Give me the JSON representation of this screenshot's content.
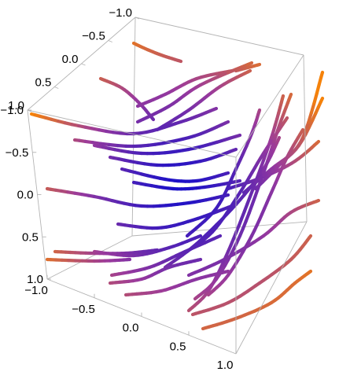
{
  "chart_data": {
    "type": "stream3d",
    "title": "",
    "xlabel": "",
    "ylabel": "",
    "zlabel": "",
    "xlim": [
      -1,
      1
    ],
    "ylim": [
      -1,
      1
    ],
    "zlim": [
      -1,
      1
    ],
    "x_ticks": [
      "−1.0",
      "−0.5",
      "0.0",
      "0.5",
      "1.0"
    ],
    "y_ticks": [
      "−1.0",
      "−0.5",
      "0.0",
      "0.5",
      "1.0"
    ],
    "z_ticks": [
      "−1.0",
      "−0.5",
      "0.0",
      "0.5",
      "1.0"
    ],
    "color_scale": {
      "low": "#1a10c8",
      "mid": "#9a3a9c",
      "high": "#f5820a",
      "meaning": "speed"
    },
    "box": "full",
    "grid": false,
    "streamlines": [
      [
        [
          170,
          55
        ],
        [
          185,
          62
        ],
        [
          205,
          70
        ],
        [
          230,
          78
        ]
      ],
      [
        [
          128,
          100
        ],
        [
          155,
          112
        ],
        [
          178,
          132
        ],
        [
          195,
          152
        ]
      ],
      [
        [
          175,
          135
        ],
        [
          210,
          120
        ],
        [
          250,
          100
        ],
        [
          295,
          90
        ]
      ],
      [
        [
          175,
          155
        ],
        [
          215,
          135
        ],
        [
          255,
          108
        ],
        [
          320,
          80
        ]
      ],
      [
        [
          200,
          165
        ],
        [
          240,
          140
        ],
        [
          280,
          110
        ],
        [
          318,
          90
        ]
      ],
      [
        [
          40,
          145
        ],
        [
          100,
          160
        ],
        [
          170,
          170
        ],
        [
          230,
          155
        ],
        [
          275,
          138
        ]
      ],
      [
        [
          95,
          178
        ],
        [
          170,
          186
        ],
        [
          240,
          175
        ],
        [
          290,
          155
        ]
      ],
      [
        [
          120,
          185
        ],
        [
          180,
          195
        ],
        [
          240,
          190
        ],
        [
          305,
          172
        ]
      ],
      [
        [
          140,
          200
        ],
        [
          200,
          210
        ],
        [
          255,
          205
        ],
        [
          300,
          190
        ]
      ],
      [
        [
          155,
          215
        ],
        [
          210,
          228
        ],
        [
          250,
          230
        ],
        [
          290,
          220
        ]
      ],
      [
        [
          170,
          232
        ],
        [
          220,
          240
        ],
        [
          260,
          238
        ],
        [
          305,
          230
        ]
      ],
      [
        [
          60,
          240
        ],
        [
          120,
          250
        ],
        [
          180,
          262
        ],
        [
          240,
          258
        ],
        [
          290,
          248
        ]
      ],
      [
        [
          70,
          320
        ],
        [
          115,
          322
        ],
        [
          160,
          322
        ],
        [
          200,
          318
        ]
      ],
      [
        [
          120,
          320
        ],
        [
          170,
          325
        ],
        [
          215,
          315
        ],
        [
          255,
          300
        ]
      ],
      [
        [
          150,
          285
        ],
        [
          200,
          290
        ],
        [
          245,
          280
        ],
        [
          300,
          260
        ]
      ],
      [
        [
          142,
          350
        ],
        [
          190,
          340
        ],
        [
          235,
          320
        ],
        [
          280,
          300
        ]
      ],
      [
        [
          140,
          360
        ],
        [
          180,
          355
        ],
        [
          215,
          340
        ],
        [
          255,
          330
        ]
      ],
      [
        [
          160,
          375
        ],
        [
          205,
          370
        ],
        [
          250,
          355
        ],
        [
          290,
          345
        ]
      ],
      [
        [
          210,
          340
        ],
        [
          250,
          310
        ],
        [
          300,
          260
        ],
        [
          335,
          215
        ],
        [
          355,
          175
        ]
      ],
      [
        [
          230,
          325
        ],
        [
          270,
          295
        ],
        [
          305,
          245
        ],
        [
          335,
          195
        ],
        [
          365,
          150
        ]
      ],
      [
        [
          238,
          300
        ],
        [
          275,
          265
        ],
        [
          300,
          215
        ],
        [
          320,
          170
        ],
        [
          330,
          140
        ]
      ],
      [
        [
          240,
          395
        ],
        [
          265,
          370
        ],
        [
          290,
          320
        ],
        [
          318,
          250
        ],
        [
          345,
          175
        ],
        [
          360,
          122
        ]
      ],
      [
        [
          248,
          380
        ],
        [
          275,
          355
        ],
        [
          305,
          300
        ],
        [
          335,
          220
        ],
        [
          355,
          160
        ],
        [
          370,
          120
        ]
      ],
      [
        [
          265,
          375
        ],
        [
          290,
          350
        ],
        [
          320,
          300
        ],
        [
          345,
          245
        ],
        [
          365,
          200
        ],
        [
          385,
          165
        ]
      ],
      [
        [
          240,
          350
        ],
        [
          285,
          330
        ],
        [
          335,
          300
        ],
        [
          370,
          270
        ],
        [
          405,
          255
        ]
      ],
      [
        [
          245,
          400
        ],
        [
          290,
          385
        ],
        [
          330,
          360
        ],
        [
          370,
          330
        ],
        [
          395,
          300
        ]
      ],
      [
        [
          258,
          418
        ],
        [
          300,
          405
        ],
        [
          345,
          385
        ],
        [
          375,
          360
        ],
        [
          395,
          345
        ]
      ],
      [
        [
          290,
          240
        ],
        [
          335,
          225
        ],
        [
          375,
          205
        ],
        [
          405,
          180
        ]
      ],
      [
        [
          310,
          245
        ],
        [
          345,
          215
        ],
        [
          380,
          185
        ],
        [
          410,
          125
        ]
      ],
      [
        [
          325,
          240
        ],
        [
          355,
          210
        ],
        [
          385,
          175
        ],
        [
          410,
          92
        ]
      ],
      [
        [
          60,
          330
        ],
        [
          120,
          332
        ],
        [
          165,
          330
        ]
      ],
      [
        [
          300,
          90
        ],
        [
          330,
          82
        ]
      ]
    ]
  }
}
